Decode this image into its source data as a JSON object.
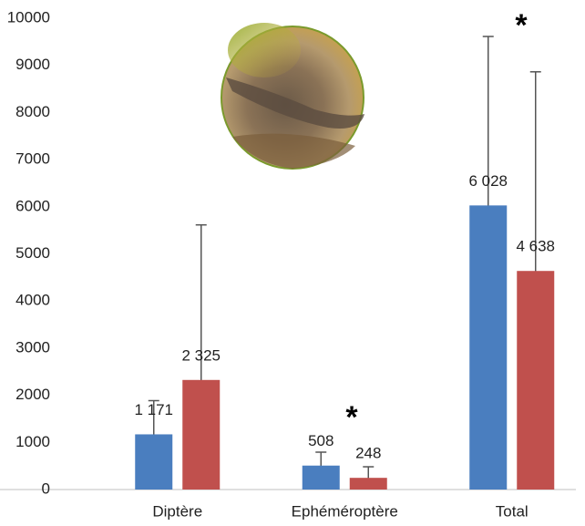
{
  "chart_data": {
    "type": "bar",
    "categories": [
      "Diptère",
      "Ephéméroptère",
      "Total"
    ],
    "series": [
      {
        "color": "#4a7ebf",
        "values": [
          1171,
          508,
          6028
        ],
        "value_labels": [
          "1 171",
          "508",
          "6 028"
        ],
        "errors": [
          715,
          285,
          3585
        ]
      },
      {
        "color": "#c0504d",
        "values": [
          2325,
          248,
          4638
        ],
        "value_labels": [
          "2 325",
          "248",
          "4 638"
        ],
        "errors": [
          3290,
          235,
          4225
        ]
      }
    ],
    "annotations": [
      "*",
      "*"
    ],
    "ylim": [
      0,
      10000
    ],
    "yticks": [
      0,
      1000,
      2000,
      3000,
      4000,
      5000,
      6000,
      7000,
      8000,
      9000,
      10000
    ],
    "grid": false
  }
}
